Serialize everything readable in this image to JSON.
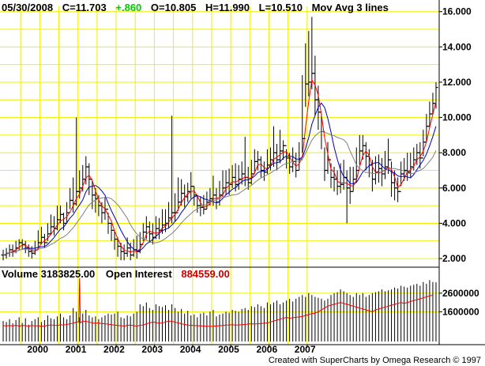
{
  "header": {
    "date": "05/30/2008",
    "close": "C=11.703",
    "change": "+.860",
    "open": "O=10.805",
    "high": "H=11.990",
    "low": "L=10.510",
    "study": "Mov Avg 3 lines"
  },
  "volume_header": {
    "volume": "Volume  3183825.00",
    "oi_label": "Open Interest",
    "oi_value": "884559.00"
  },
  "credit": "Created with SuperCharts by Omega Research © 1997",
  "colors": {
    "background": "#ffffff",
    "grid": "#f0f000",
    "bars": "#000000",
    "ma_fast": "#ff0000",
    "ma_mid": "#0000c0",
    "ma_slow": "#808080",
    "change_up": "#00cc00",
    "open_interest": "#ff0000"
  },
  "chart_data": [
    {
      "type": "bar",
      "subtype": "ohlc-price",
      "x_unit": "month",
      "x_start": "1999-01",
      "x_tick_labels": [
        "2000",
        "2001",
        "2002",
        "2003",
        "2004",
        "2005",
        "2006",
        "2007"
      ],
      "y_tick_labels": [
        "2.000",
        "4.000",
        "6.000",
        "8.000",
        "10.000",
        "12.000",
        "14.000",
        "16.000"
      ],
      "ylim": [
        1.6,
        16.3
      ],
      "grid": true,
      "close": [
        2.2,
        2.3,
        2.5,
        2.4,
        2.6,
        2.9,
        2.8,
        2.6,
        2.4,
        2.3,
        2.5,
        2.9,
        3.2,
        2.9,
        3.4,
        3.8,
        3.7,
        4.2,
        4.5,
        4.0,
        4.6,
        5.3,
        5.1,
        5.8,
        6.0,
        6.5,
        7.2,
        6.5,
        5.6,
        5.4,
        5.0,
        4.6,
        4.8,
        4.0,
        3.6,
        3.1,
        2.7,
        2.4,
        2.3,
        2.6,
        2.2,
        2.5,
        2.4,
        2.8,
        3.5,
        3.8,
        3.4,
        3.2,
        3.7,
        3.6,
        3.9,
        4.0,
        4.3,
        4.6,
        4.6,
        5.2,
        5.7,
        5.5,
        5.8,
        6.1,
        5.6,
        5.0,
        4.9,
        4.8,
        5.2,
        5.4,
        5.6,
        5.2,
        5.6,
        6.0,
        6.3,
        6.2,
        6.6,
        6.2,
        6.5,
        6.8,
        6.6,
        6.3,
        6.8,
        7.5,
        7.6,
        7.0,
        6.9,
        7.3,
        7.6,
        8.0,
        7.6,
        8.1,
        8.4,
        7.7,
        7.2,
        7.5,
        7.0,
        7.6,
        8.8,
        11.9,
        12.0,
        12.5,
        11.0,
        10.3,
        9.2,
        7.0,
        7.6,
        6.6,
        6.5,
        6.1,
        6.2,
        6.6,
        6.0,
        5.8,
        6.5,
        7.0,
        8.1,
        8.4,
        7.8,
        7.3,
        6.5,
        6.9,
        7.1,
        6.8,
        7.2,
        7.6,
        6.3,
        6.0,
        5.8,
        6.8,
        7.0,
        6.9,
        7.2,
        7.6,
        8.0,
        7.7,
        8.6,
        9.5,
        10.2,
        10.8,
        11.7
      ],
      "high": [
        2.5,
        2.6,
        2.8,
        2.8,
        3.0,
        3.1,
        3.1,
        3.0,
        2.8,
        2.7,
        3.0,
        3.6,
        3.8,
        3.4,
        4.0,
        4.5,
        4.4,
        5.0,
        5.0,
        4.6,
        5.2,
        6.0,
        6.6,
        10.0,
        7.0,
        7.3,
        7.8,
        7.4,
        6.4,
        6.0,
        5.6,
        5.2,
        5.5,
        4.6,
        4.0,
        3.6,
        3.2,
        2.9,
        2.8,
        3.2,
        2.9,
        3.1,
        3.3,
        3.5,
        4.0,
        4.4,
        4.1,
        4.0,
        4.4,
        4.3,
        4.8,
        4.8,
        5.2,
        10.1,
        5.7,
        6.6,
        6.5,
        6.2,
        6.3,
        6.9,
        6.1,
        5.6,
        5.5,
        5.6,
        5.8,
        6.0,
        6.7,
        6.0,
        6.4,
        7.0,
        7.0,
        7.1,
        7.3,
        7.4,
        7.3,
        7.5,
        8.9,
        7.2,
        7.6,
        8.2,
        8.1,
        7.8,
        7.5,
        8.2,
        8.3,
        9.5,
        8.5,
        9.3,
        8.7,
        8.2,
        8.0,
        8.3,
        8.0,
        8.6,
        12.4,
        14.2,
        14.9,
        15.7,
        13.5,
        11.8,
        10.2,
        8.3,
        8.6,
        7.4,
        7.2,
        7.0,
        7.4,
        7.6,
        7.0,
        7.2,
        7.2,
        8.3,
        9.0,
        9.0,
        8.6,
        8.2,
        7.6,
        7.8,
        7.9,
        7.7,
        8.1,
        8.8,
        7.5,
        7.0,
        6.6,
        7.5,
        7.7,
        8.0,
        8.0,
        8.3,
        8.5,
        8.6,
        9.3,
        10.2,
        10.9,
        11.4,
        12.0
      ],
      "low": [
        1.9,
        2.0,
        2.1,
        2.1,
        2.3,
        2.5,
        2.5,
        2.3,
        2.1,
        2.0,
        2.2,
        2.5,
        2.8,
        2.6,
        3.0,
        3.4,
        3.3,
        3.6,
        4.0,
        3.6,
        4.0,
        4.8,
        4.6,
        5.0,
        5.4,
        5.8,
        6.2,
        5.6,
        4.8,
        4.6,
        4.4,
        4.0,
        4.2,
        3.4,
        3.0,
        2.5,
        2.1,
        1.9,
        1.9,
        2.1,
        1.9,
        2.1,
        2.0,
        2.3,
        3.0,
        3.1,
        2.9,
        2.8,
        3.1,
        3.1,
        3.4,
        3.5,
        3.7,
        4.0,
        4.1,
        4.7,
        5.0,
        4.9,
        5.2,
        5.4,
        5.0,
        4.6,
        4.4,
        4.5,
        4.8,
        5.0,
        5.0,
        4.8,
        5.0,
        5.5,
        5.6,
        5.6,
        6.0,
        5.8,
        5.9,
        6.2,
        6.1,
        5.9,
        6.2,
        6.8,
        7.0,
        6.6,
        6.4,
        6.8,
        7.0,
        7.2,
        7.0,
        7.4,
        7.6,
        7.1,
        6.8,
        6.9,
        6.6,
        7.0,
        8.0,
        10.6,
        11.2,
        11.6,
        10.1,
        9.3,
        8.2,
        6.4,
        6.8,
        6.0,
        5.8,
        5.6,
        5.7,
        5.9,
        4.0,
        5.1,
        5.8,
        6.3,
        7.3,
        7.6,
        7.0,
        6.6,
        5.8,
        6.2,
        6.3,
        6.1,
        6.5,
        6.8,
        5.5,
        5.3,
        5.2,
        6.1,
        6.4,
        6.4,
        6.6,
        7.0,
        7.3,
        7.1,
        7.8,
        8.6,
        9.4,
        10.2,
        10.5
      ],
      "moving_averages": [
        {
          "length": "fast",
          "color": "#ff0000"
        },
        {
          "length": "mid",
          "color": "#0000c0"
        },
        {
          "length": "slow",
          "color": "#808080"
        }
      ]
    },
    {
      "type": "bar",
      "subtype": "volume-and-open-interest",
      "x_unit": "month",
      "x_start": "1999-01",
      "y_tick_labels": [
        "1600000",
        "2600000"
      ],
      "ylim": [
        0,
        3400000
      ],
      "volume": [
        1100000,
        1050000,
        1200000,
        980000,
        1150000,
        1300000,
        1000000,
        1250000,
        900000,
        1100000,
        1200000,
        1300000,
        1050000,
        1150000,
        1400000,
        1250000,
        1200000,
        1350000,
        1500000,
        1300000,
        1200000,
        1400000,
        1800000,
        1600000,
        1300000,
        1500000,
        1700000,
        1400000,
        1300000,
        1350000,
        1200000,
        1300000,
        1400000,
        1500000,
        1450000,
        1500000,
        1600000,
        1300000,
        1250000,
        1400000,
        1350000,
        1500000,
        1600000,
        2000000,
        1900000,
        2100000,
        1800000,
        1700000,
        2000000,
        1900000,
        1850000,
        1950000,
        1700000,
        2000000,
        1800000,
        1600000,
        1750000,
        1500000,
        1650000,
        1400000,
        1450000,
        1300000,
        1500000,
        1550000,
        1400000,
        1600000,
        1700000,
        1350000,
        1450000,
        1500000,
        1600000,
        1550000,
        1700000,
        1650000,
        1600000,
        1750000,
        1800000,
        1700000,
        1900000,
        1850000,
        2000000,
        1900000,
        1800000,
        2100000,
        2000000,
        2100000,
        2200000,
        2000000,
        2100000,
        2200000,
        2300000,
        2150000,
        2300000,
        2400000,
        2500000,
        2400000,
        2600000,
        2500000,
        2400000,
        2350000,
        2300000,
        2200000,
        2300000,
        2500000,
        2600000,
        2650000,
        2800000,
        2700000,
        2600000,
        2500000,
        2400000,
        2600000,
        2500000,
        2600000,
        2400000,
        2500000,
        2600000,
        2650000,
        2700000,
        2800000,
        2700000,
        2750000,
        2800000,
        2900000,
        2850000,
        3000000,
        2950000,
        2900000,
        3000000,
        3050000,
        3100000,
        3000000,
        3200000,
        3100000,
        3300000,
        3200000,
        3183825
      ],
      "open_interest": [
        850000,
        840000,
        860000,
        830000,
        880000,
        820000,
        870000,
        850000,
        830000,
        860000,
        840000,
        850000,
        820000,
        830000,
        870000,
        890000,
        870000,
        860000,
        900000,
        880000,
        920000,
        950000,
        980000,
        1050000,
        1000000,
        1100000,
        1080000,
        1050000,
        1000000,
        980000,
        1000000,
        960000,
        950000,
        930000,
        900000,
        880000,
        860000,
        850000,
        830000,
        870000,
        880000,
        850000,
        830000,
        870000,
        890000,
        950000,
        1000000,
        1050000,
        1020000,
        980000,
        1000000,
        1050000,
        1100000,
        1080000,
        1040000,
        1000000,
        950000,
        920000,
        880000,
        870000,
        860000,
        850000,
        840000,
        830000,
        820000,
        810000,
        820000,
        840000,
        850000,
        860000,
        880000,
        890000,
        900000,
        880000,
        890000,
        900000,
        920000,
        940000,
        950000,
        940000,
        950000,
        970000,
        980000,
        1000000,
        1050000,
        1100000,
        1150000,
        1200000,
        1250000,
        1300000,
        1250000,
        1280000,
        1300000,
        1320000,
        1350000,
        1400000,
        1450000,
        1500000,
        1520000,
        1600000,
        1700000,
        1800000,
        1900000,
        1950000,
        2000000,
        2050000,
        2100000,
        2050000,
        2000000,
        1950000,
        1900000,
        1850000,
        1800000,
        1750000,
        1700000,
        1650000,
        1600000,
        1700000,
        1750000,
        1800000,
        1850000,
        1900000,
        1950000,
        2000000,
        2050000,
        2100000,
        2050000,
        2100000,
        2150000,
        2200000,
        2250000,
        2300000,
        2350000,
        2400000,
        2450000,
        2500000,
        884559
      ],
      "open_interest_spike": {
        "month_index": 24,
        "value": 3400000
      }
    }
  ]
}
